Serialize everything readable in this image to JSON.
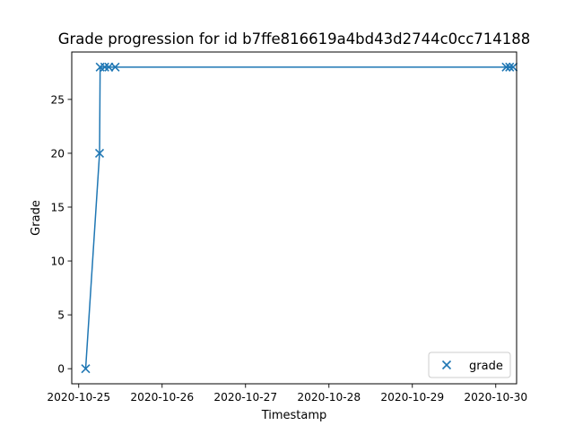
{
  "chart_data": {
    "type": "line",
    "title": "Grade progression for id b7ffe816619a4bd43d2744c0cc714188",
    "xlabel": "Timestamp",
    "ylabel": "Grade",
    "x_axis_type": "datetime",
    "xlim": [
      "2020-10-24T22:00:00",
      "2020-10-30T06:00:00"
    ],
    "ylim": [
      -1.4,
      29.4
    ],
    "x_ticks": [
      {
        "value": "2020-10-25",
        "label": "2020-10-25"
      },
      {
        "value": "2020-10-26",
        "label": "2020-10-26"
      },
      {
        "value": "2020-10-27",
        "label": "2020-10-27"
      },
      {
        "value": "2020-10-28",
        "label": "2020-10-28"
      },
      {
        "value": "2020-10-29",
        "label": "2020-10-29"
      },
      {
        "value": "2020-10-30",
        "label": "2020-10-30"
      }
    ],
    "y_ticks": [
      0,
      5,
      10,
      15,
      20,
      25
    ],
    "grid": false,
    "legend": {
      "position": "lower right",
      "entries": [
        "grade"
      ]
    },
    "series": [
      {
        "name": "grade",
        "color": "#1f77b4",
        "marker": "x",
        "line": true,
        "points": [
          {
            "x": "2020-10-25T02:00:00",
            "y": 0
          },
          {
            "x": "2020-10-25T06:00:00",
            "y": 20
          },
          {
            "x": "2020-10-25T06:10:00",
            "y": 28
          },
          {
            "x": "2020-10-25T07:30:00",
            "y": 28
          },
          {
            "x": "2020-10-25T08:40:00",
            "y": 28
          },
          {
            "x": "2020-10-25T10:30:00",
            "y": 28
          },
          {
            "x": "2020-10-30T03:00:00",
            "y": 28
          },
          {
            "x": "2020-10-30T04:00:00",
            "y": 28
          },
          {
            "x": "2020-10-30T05:00:00",
            "y": 28
          }
        ]
      }
    ]
  }
}
